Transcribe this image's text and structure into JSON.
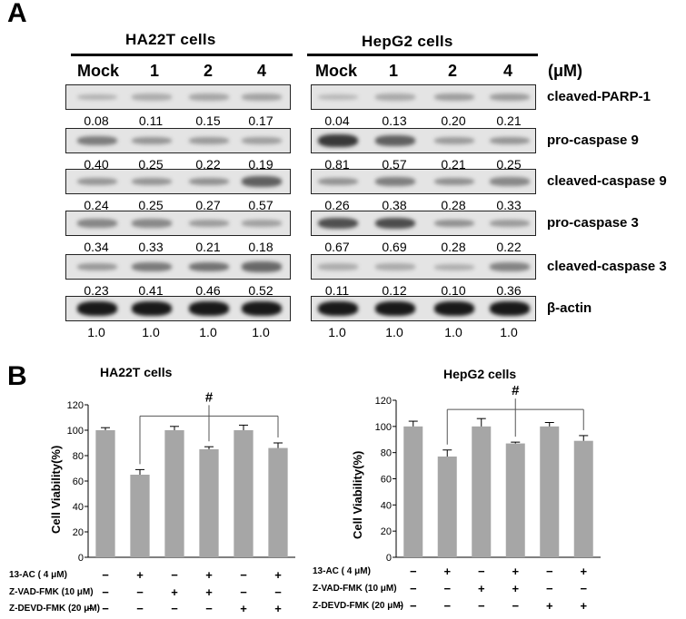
{
  "panelA": {
    "letter": "A",
    "groups": [
      {
        "title": "HA22T cells",
        "lanes": [
          "Mock",
          "1",
          "2",
          "4"
        ]
      },
      {
        "title": "HepG2 cells",
        "lanes": [
          "Mock",
          "1",
          "2",
          "4"
        ]
      }
    ],
    "unit": "(μM)",
    "rows": [
      {
        "protein": "cleaved-PARP-1",
        "ha22t": [
          "0.08",
          "0.11",
          "0.15",
          "0.17"
        ],
        "hepg2": [
          "0.04",
          "0.13",
          "0.20",
          "0.21"
        ]
      },
      {
        "protein": "pro-caspase 9",
        "ha22t": [
          "0.40",
          "0.25",
          "0.22",
          "0.19"
        ],
        "hepg2": [
          "0.81",
          "0.57",
          "0.21",
          "0.25"
        ]
      },
      {
        "protein": "cleaved-caspase 9",
        "ha22t": [
          "0.24",
          "0.25",
          "0.27",
          "0.57"
        ],
        "hepg2": [
          "0.26",
          "0.38",
          "0.28",
          "0.33"
        ]
      },
      {
        "protein": "pro-caspase 3",
        "ha22t": [
          "0.34",
          "0.33",
          "0.21",
          "0.18"
        ],
        "hepg2": [
          "0.67",
          "0.69",
          "0.28",
          "0.22"
        ]
      },
      {
        "protein": "cleaved-caspase 3",
        "ha22t": [
          "0.23",
          "0.41",
          "0.46",
          "0.52"
        ],
        "hepg2": [
          "0.11",
          "0.12",
          "0.10",
          "0.36"
        ]
      },
      {
        "protein": "β-actin",
        "ha22t": [
          "1.0",
          "1.0",
          "1.0",
          "1.0"
        ],
        "hepg2": [
          "1.0",
          "1.0",
          "1.0",
          "1.0"
        ]
      }
    ]
  },
  "panelB": {
    "letter": "B",
    "treatments": [
      {
        "label": "13-AC ( 4 μM)",
        "signs": [
          "−",
          "+",
          "−",
          "+",
          "−",
          "+"
        ]
      },
      {
        "label": "Z-VAD-FMK (10 μM)",
        "signs": [
          "−",
          "−",
          "+",
          "+",
          "−",
          "−"
        ]
      },
      {
        "label": "Z-DEVD-FMK (20 μM)",
        "signs": [
          "−",
          "−",
          "−",
          "−",
          "+",
          "+"
        ]
      }
    ],
    "dash": "–",
    "significance": "#"
  },
  "chart_data": [
    {
      "type": "bar",
      "title": "HA22T cells",
      "ylabel": "Cell Viability(%)",
      "ylim": [
        0,
        120
      ],
      "yticks": [
        "0",
        "20",
        "40",
        "60",
        "80",
        "100",
        "120"
      ],
      "values": [
        100,
        65,
        100,
        85,
        100,
        86
      ],
      "errors": [
        2,
        4,
        3,
        2,
        4,
        4
      ],
      "bar_color": "#a6a6a6"
    },
    {
      "type": "bar",
      "title": "HepG2 cells",
      "ylabel": "Cell Viability(%)",
      "ylim": [
        0,
        120
      ],
      "yticks": [
        "0",
        "20",
        "40",
        "60",
        "80",
        "100",
        "120"
      ],
      "values": [
        100,
        77,
        100,
        87,
        100,
        89
      ],
      "errors": [
        4,
        5,
        6,
        1,
        3,
        4
      ],
      "bar_color": "#a6a6a6"
    }
  ]
}
